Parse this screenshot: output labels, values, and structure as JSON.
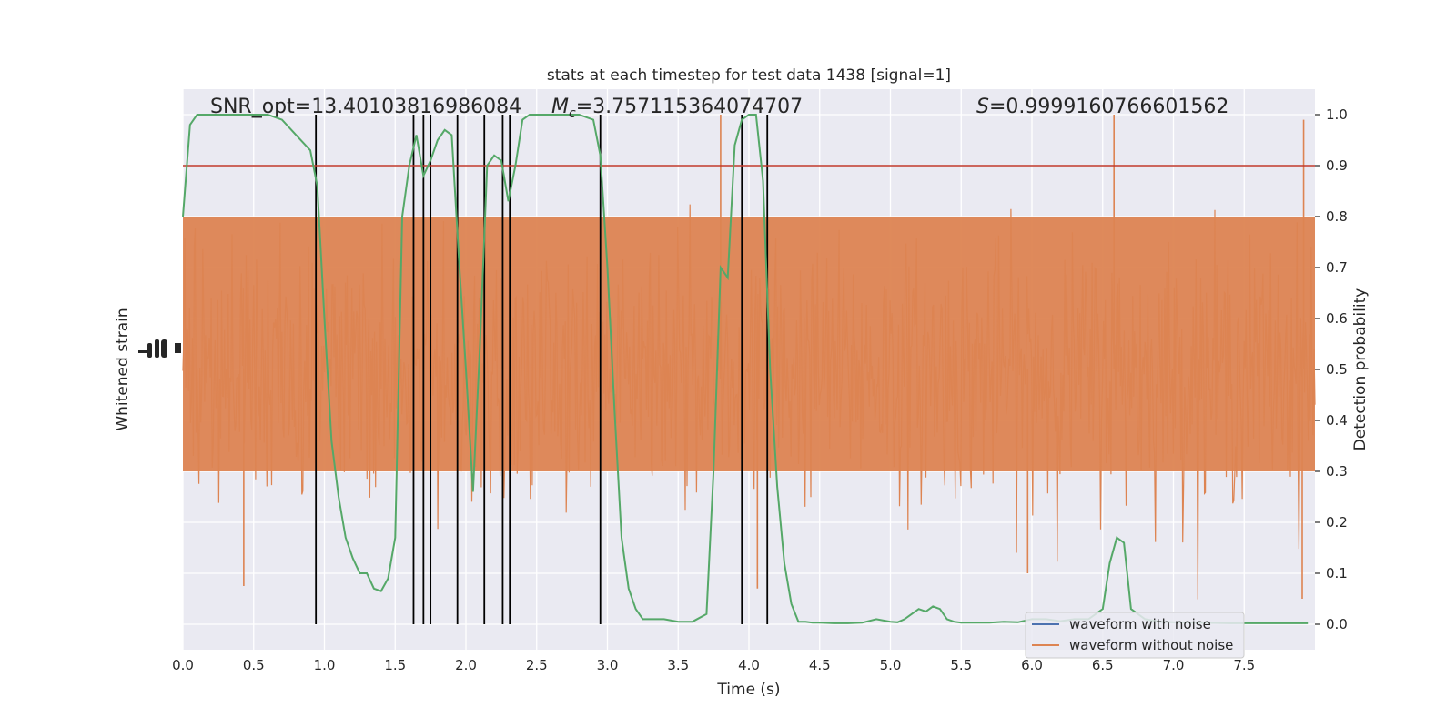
{
  "chart_data": {
    "type": "line",
    "title": "stats at each timestep for test data 1438 [signal=1]",
    "xlabel": "Time (s)",
    "ylabel_left": "Whitened strain",
    "ylabel_right": "Detection probability",
    "xlim": [
      0.0,
      8.0
    ],
    "ylim_right": [
      -0.05,
      1.05
    ],
    "x_ticks": [
      "0.0",
      "0.5",
      "1.0",
      "1.5",
      "2.0",
      "2.5",
      "3.0",
      "3.5",
      "4.0",
      "4.5",
      "5.0",
      "5.5",
      "6.0",
      "6.5",
      "7.0",
      "7.5"
    ],
    "x_tick_values": [
      0.0,
      0.5,
      1.0,
      1.5,
      2.0,
      2.5,
      3.0,
      3.5,
      4.0,
      4.5,
      5.0,
      5.5,
      6.0,
      6.5,
      7.0,
      7.5
    ],
    "y_ticks_right": [
      "0.0",
      "0.1",
      "0.2",
      "0.3",
      "0.4",
      "0.5",
      "0.6",
      "0.7",
      "0.8",
      "0.9",
      "1.0"
    ],
    "y_tick_values_right": [
      0.0,
      0.1,
      0.2,
      0.3,
      0.4,
      0.5,
      0.6,
      0.7,
      0.8,
      0.9,
      1.0
    ],
    "grid": true,
    "annotations": {
      "snr": "SNR_opt=13.40103816986084",
      "mc_symbol": "M",
      "mc_sub": "c",
      "mc_value": "=3.757115364074707",
      "s_symbol": "S",
      "s_value": "=0.9999160766601562"
    },
    "threshold": {
      "y": 0.9,
      "color": "#c0392b"
    },
    "legend": {
      "placement": "lower-right",
      "entries": [
        {
          "label": "waveform with noise",
          "color": "#4c72b0"
        },
        {
          "label": "waveform without noise",
          "color": "#dd8452"
        }
      ]
    },
    "detection_probability": {
      "color": "#55a868",
      "x": [
        0.0,
        0.05,
        0.1,
        0.15,
        0.2,
        0.3,
        0.4,
        0.5,
        0.6,
        0.7,
        0.8,
        0.9,
        0.95,
        1.0,
        1.05,
        1.1,
        1.15,
        1.2,
        1.25,
        1.3,
        1.35,
        1.4,
        1.45,
        1.5,
        1.55,
        1.6,
        1.65,
        1.7,
        1.75,
        1.8,
        1.85,
        1.9,
        1.95,
        2.0,
        2.05,
        2.1,
        2.15,
        2.2,
        2.25,
        2.3,
        2.35,
        2.4,
        2.45,
        2.5,
        2.55,
        2.6,
        2.7,
        2.8,
        2.9,
        2.95,
        3.0,
        3.05,
        3.1,
        3.15,
        3.2,
        3.25,
        3.3,
        3.35,
        3.4,
        3.5,
        3.6,
        3.7,
        3.75,
        3.8,
        3.85,
        3.9,
        3.95,
        4.0,
        4.05,
        4.1,
        4.15,
        4.2,
        4.25,
        4.3,
        4.35,
        4.4,
        4.45,
        4.5,
        4.6,
        4.7,
        4.8,
        4.9,
        5.0,
        5.05,
        5.1,
        5.15,
        5.2,
        5.25,
        5.3,
        5.35,
        5.4,
        5.45,
        5.5,
        5.6,
        5.7,
        5.8,
        5.9,
        6.0,
        6.1,
        6.2,
        6.3,
        6.4,
        6.5,
        6.55,
        6.6,
        6.65,
        6.7,
        6.75,
        6.8,
        6.9,
        7.0,
        7.2,
        7.4,
        7.6,
        7.8,
        7.95
      ],
      "y": [
        0.8,
        0.98,
        1.0,
        1.0,
        1.0,
        1.0,
        1.0,
        1.0,
        1.0,
        0.99,
        0.96,
        0.93,
        0.86,
        0.6,
        0.36,
        0.25,
        0.17,
        0.13,
        0.1,
        0.1,
        0.07,
        0.065,
        0.09,
        0.17,
        0.8,
        0.9,
        0.96,
        0.88,
        0.91,
        0.95,
        0.97,
        0.96,
        0.72,
        0.5,
        0.26,
        0.55,
        0.9,
        0.92,
        0.91,
        0.83,
        0.9,
        0.99,
        1.0,
        1.0,
        1.0,
        1.0,
        1.0,
        1.0,
        0.99,
        0.92,
        0.7,
        0.42,
        0.17,
        0.07,
        0.03,
        0.01,
        0.01,
        0.01,
        0.01,
        0.005,
        0.005,
        0.02,
        0.3,
        0.7,
        0.68,
        0.94,
        0.99,
        1.0,
        1.0,
        0.87,
        0.5,
        0.27,
        0.12,
        0.04,
        0.005,
        0.005,
        0.003,
        0.003,
        0.002,
        0.002,
        0.003,
        0.01,
        0.005,
        0.004,
        0.01,
        0.02,
        0.03,
        0.025,
        0.035,
        0.03,
        0.01,
        0.005,
        0.003,
        0.003,
        0.003,
        0.005,
        0.004,
        0.01,
        0.01,
        0.006,
        0.01,
        0.01,
        0.03,
        0.12,
        0.17,
        0.16,
        0.03,
        0.02,
        0.01,
        0.005,
        0.004,
        0.003,
        0.002,
        0.002,
        0.002,
        0.002
      ]
    },
    "trigger_times": [
      0.94,
      1.63,
      1.7,
      1.75,
      1.94,
      2.13,
      2.26,
      2.31,
      2.95,
      3.95,
      4.13
    ],
    "strain_series": {
      "color": "#dd8452",
      "n_samples": 1200,
      "rms": 0.12,
      "baseline": 0.5,
      "spikes": [
        {
          "x": 0.43,
          "y": 0.075
        },
        {
          "x": 3.8,
          "y": 1.0
        },
        {
          "x": 4.06,
          "y": 0.07
        },
        {
          "x": 6.58,
          "y": 1.0
        },
        {
          "x": 7.91,
          "y": 0.05
        },
        {
          "x": 7.92,
          "y": 0.99
        },
        {
          "x": 5.97,
          "y": 0.1
        }
      ]
    }
  }
}
